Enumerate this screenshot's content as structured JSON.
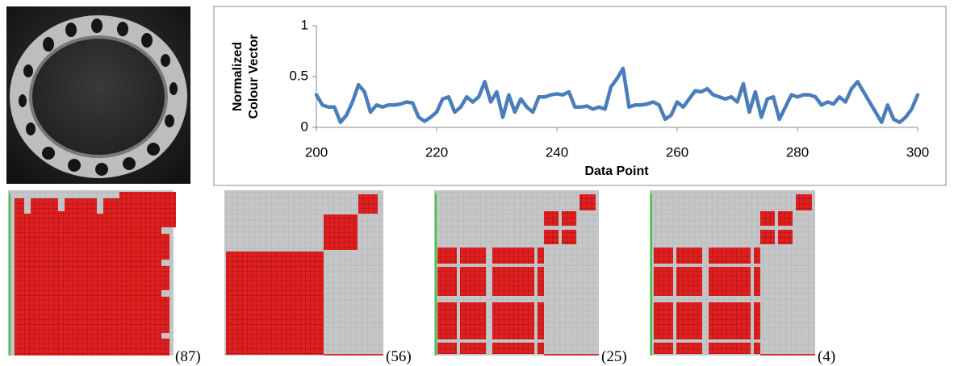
{
  "chart_data": {
    "type": "line",
    "xlabel": "Data Point",
    "ylabel": [
      "Normalized",
      "Colour Vector"
    ],
    "color": "#4a7ebb",
    "x": [
      200,
      201,
      202,
      203,
      204,
      205,
      206,
      207,
      208,
      209,
      210,
      211,
      212,
      213,
      214,
      215,
      216,
      217,
      218,
      219,
      220,
      221,
      222,
      223,
      224,
      225,
      226,
      227,
      228,
      229,
      230,
      231,
      232,
      233,
      234,
      235,
      236,
      237,
      238,
      239,
      240,
      241,
      242,
      243,
      244,
      245,
      246,
      247,
      248,
      249,
      250,
      251,
      252,
      253,
      254,
      255,
      256,
      257,
      258,
      259,
      260,
      261,
      262,
      263,
      264,
      265,
      266,
      267,
      268,
      269,
      270,
      271,
      272,
      273,
      274,
      275,
      276,
      277,
      278,
      279,
      280,
      281,
      282,
      283,
      284,
      285,
      286,
      287,
      288,
      289,
      290,
      291,
      292,
      293,
      294,
      295,
      296,
      297,
      298,
      299,
      300
    ],
    "values": [
      0.32,
      0.22,
      0.2,
      0.2,
      0.05,
      0.12,
      0.25,
      0.42,
      0.35,
      0.15,
      0.22,
      0.2,
      0.22,
      0.22,
      0.23,
      0.25,
      0.24,
      0.1,
      0.06,
      0.1,
      0.15,
      0.28,
      0.3,
      0.15,
      0.2,
      0.3,
      0.25,
      0.3,
      0.45,
      0.25,
      0.35,
      0.1,
      0.32,
      0.15,
      0.28,
      0.2,
      0.15,
      0.3,
      0.3,
      0.32,
      0.33,
      0.32,
      0.35,
      0.2,
      0.2,
      0.21,
      0.18,
      0.2,
      0.18,
      0.4,
      0.48,
      0.58,
      0.2,
      0.22,
      0.22,
      0.23,
      0.25,
      0.22,
      0.08,
      0.12,
      0.25,
      0.2,
      0.28,
      0.36,
      0.35,
      0.38,
      0.32,
      0.3,
      0.28,
      0.3,
      0.25,
      0.43,
      0.15,
      0.35,
      0.1,
      0.28,
      0.3,
      0.08,
      0.2,
      0.32,
      0.3,
      0.32,
      0.32,
      0.3,
      0.22,
      0.25,
      0.23,
      0.3,
      0.25,
      0.38,
      0.45,
      0.35,
      0.25,
      0.15,
      0.05,
      0.22,
      0.08,
      0.05,
      0.1,
      0.18,
      0.32
    ],
    "xlim": [
      200,
      300
    ],
    "xticks": [
      200,
      220,
      240,
      260,
      280,
      300
    ],
    "ylim": [
      0,
      1
    ],
    "yticks": [
      0,
      0.5,
      1
    ]
  },
  "panels": [
    {
      "label": "(87)"
    },
    {
      "label": "(56)"
    },
    {
      "label": "(25)"
    },
    {
      "label": "(4)"
    }
  ]
}
